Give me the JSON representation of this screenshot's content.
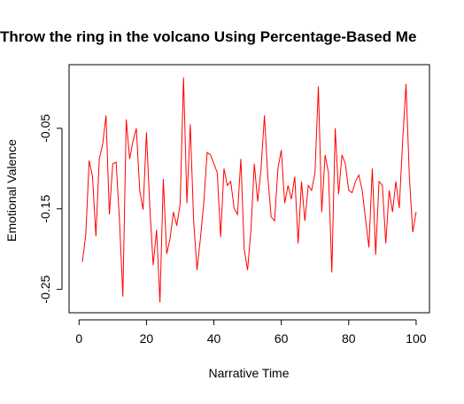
{
  "chart_data": {
    "type": "line",
    "title": "Throw the ring in the volcano Using Percentage-Based Me",
    "xlabel": "Narrative Time",
    "ylabel": "Emotional Valence",
    "x": [
      1,
      2,
      3,
      4,
      5,
      6,
      7,
      8,
      9,
      10,
      11,
      12,
      13,
      14,
      15,
      16,
      17,
      18,
      19,
      20,
      21,
      22,
      23,
      24,
      25,
      26,
      27,
      28,
      29,
      30,
      31,
      32,
      33,
      34,
      35,
      36,
      37,
      38,
      39,
      40,
      41,
      42,
      43,
      44,
      45,
      46,
      47,
      48,
      49,
      50,
      51,
      52,
      53,
      54,
      55,
      56,
      57,
      58,
      59,
      60,
      61,
      62,
      63,
      64,
      65,
      66,
      67,
      68,
      69,
      70,
      71,
      72,
      73,
      74,
      75,
      76,
      77,
      78,
      79,
      80,
      81,
      82,
      83,
      84,
      85,
      86,
      87,
      88,
      89,
      90,
      91,
      92,
      93,
      94,
      95,
      96,
      97,
      98,
      99,
      100
    ],
    "series": [
      {
        "name": "Emotional Valence",
        "color": "#ff0000",
        "values": [
          -0.216,
          -0.182,
          -0.09,
          -0.11,
          -0.184,
          -0.088,
          -0.07,
          -0.034,
          -0.157,
          -0.094,
          -0.092,
          -0.165,
          -0.259,
          -0.039,
          -0.088,
          -0.066,
          -0.05,
          -0.127,
          -0.151,
          -0.055,
          -0.149,
          -0.22,
          -0.176,
          -0.266,
          -0.113,
          -0.206,
          -0.187,
          -0.154,
          -0.171,
          -0.143,
          0.013,
          -0.143,
          -0.045,
          -0.165,
          -0.226,
          -0.187,
          -0.143,
          -0.08,
          -0.083,
          -0.094,
          -0.105,
          -0.185,
          -0.1,
          -0.121,
          -0.116,
          -0.149,
          -0.157,
          -0.088,
          -0.2,
          -0.226,
          -0.176,
          -0.094,
          -0.141,
          -0.1,
          -0.034,
          -0.11,
          -0.16,
          -0.165,
          -0.1,
          -0.077,
          -0.143,
          -0.121,
          -0.138,
          -0.11,
          -0.193,
          -0.116,
          -0.165,
          -0.121,
          -0.127,
          -0.105,
          0.002,
          -0.154,
          -0.083,
          -0.105,
          -0.229,
          -0.05,
          -0.132,
          -0.083,
          -0.094,
          -0.127,
          -0.13,
          -0.116,
          -0.108,
          -0.127,
          -0.163,
          -0.198,
          -0.1,
          -0.207,
          -0.116,
          -0.121,
          -0.193,
          -0.127,
          -0.154,
          -0.116,
          -0.149,
          -0.066,
          0.005,
          -0.11,
          -0.179,
          -0.154
        ]
      }
    ],
    "xlim": [
      -2.96,
      103.96
    ],
    "xticks": [
      0,
      20,
      40,
      60,
      80,
      100
    ],
    "ylim": [
      -0.279,
      0.029
    ],
    "yticks": [
      {
        "value": -0.25,
        "label": "-0.25"
      },
      {
        "value": -0.15,
        "label": "-0.15"
      },
      {
        "value": -0.05,
        "label": "-0.05"
      }
    ],
    "grid": false
  }
}
